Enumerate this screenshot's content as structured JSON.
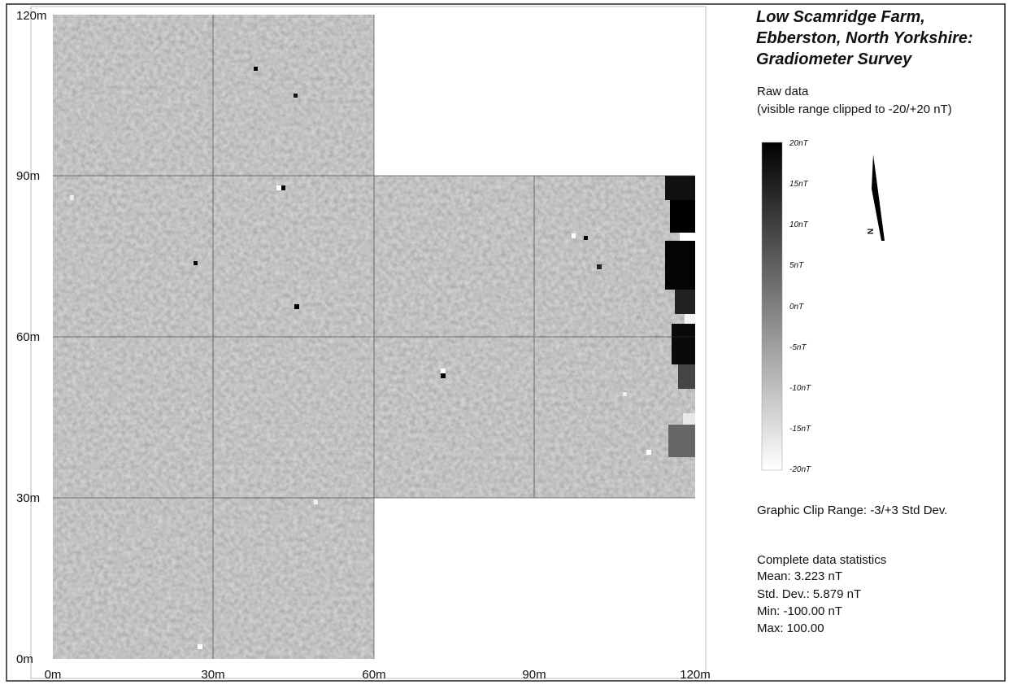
{
  "title": [
    "Low Scamridge Farm,",
    "Ebberston, North Yorkshire:",
    "Gradiometer Survey"
  ],
  "subtitle": [
    "Raw data",
    "(visible range clipped to -20/+20 nT)"
  ],
  "colorbar": {
    "labels": [
      "20nT",
      "15nT",
      "10nT",
      "5nT",
      "0nT",
      "-5nT",
      "-10nT",
      "-15nT",
      "-20nT"
    ]
  },
  "north_label": "N",
  "x_axis": {
    "labels": [
      "0m",
      "30m",
      "60m",
      "90m",
      "120m"
    ]
  },
  "y_axis": {
    "labels": [
      "0m",
      "30m",
      "60m",
      "90m",
      "120m"
    ]
  },
  "clip_range": "Graphic Clip Range: -3/+3 Std Dev.",
  "statistics": {
    "heading": "Complete data statistics",
    "lines": [
      "Mean: 3.223 nT",
      "Std. Dev.: 5.879 nT",
      "Min: -100.00 nT",
      "Max: 100.00"
    ]
  }
}
